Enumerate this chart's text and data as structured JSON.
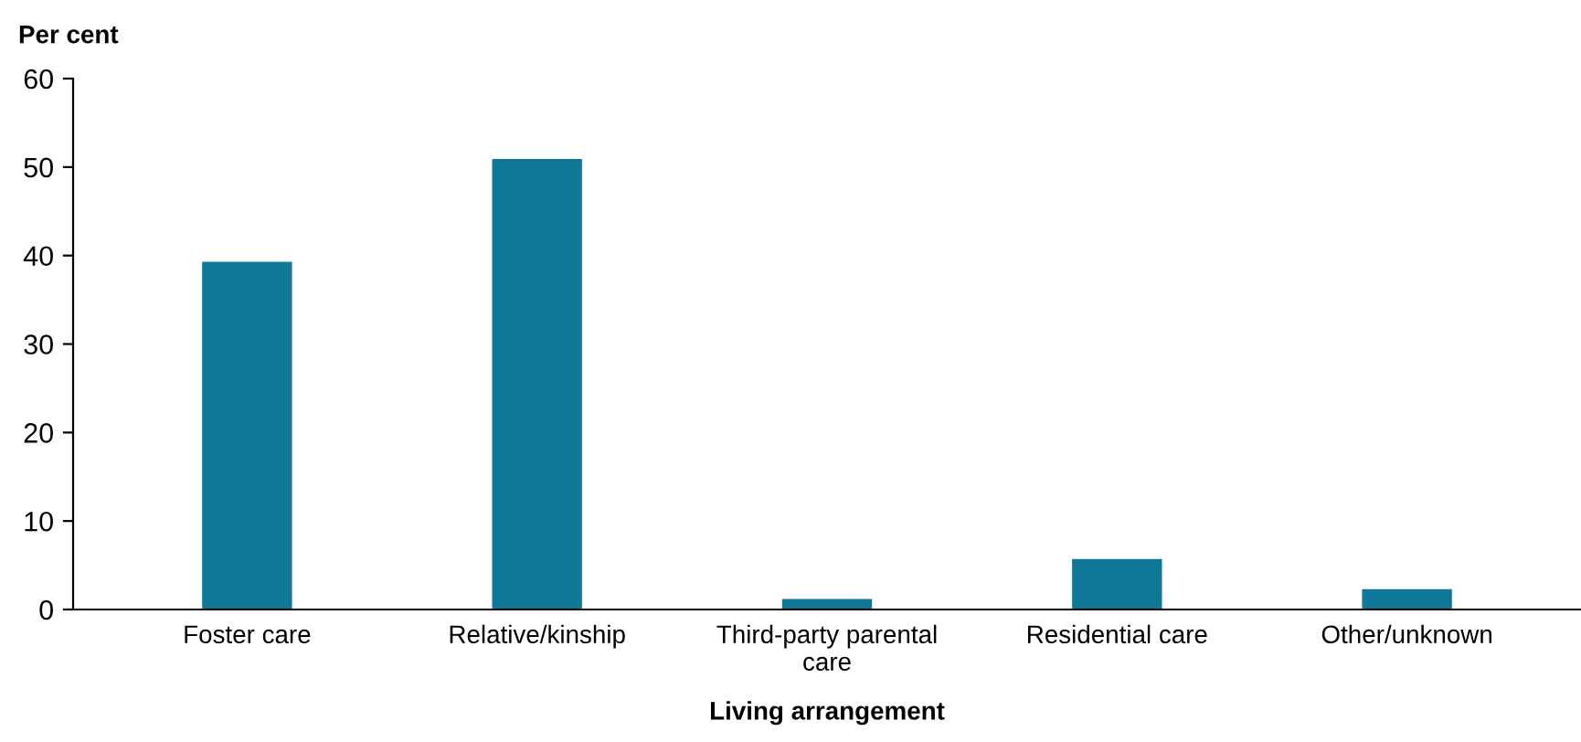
{
  "chart_data": {
    "type": "bar",
    "ylabel": "Per cent",
    "xlabel": "Living arrangement",
    "categories": [
      "Foster care",
      "Relative/kinship",
      "Third-party parental\ncare",
      "Residential care",
      "Other/unknown"
    ],
    "values": [
      39.3,
      50.9,
      1.2,
      5.7,
      2.3
    ],
    "color": "#0e7896",
    "ylim": [
      0,
      60
    ],
    "yticks": [
      0,
      10,
      20,
      30,
      40,
      50,
      60
    ],
    "grid": false
  }
}
